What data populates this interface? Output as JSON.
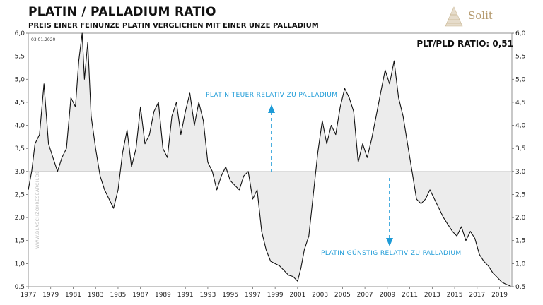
{
  "header": {
    "title": "PLATIN / PALLADIUM RATIO",
    "subtitle": "PREIS EINER FEINUNZE PLATIN VERGLICHEN MIT EINER UNZE PALLADIUM"
  },
  "brand": {
    "name": "Solit",
    "color": "#b59a6e"
  },
  "date_label": "03.01.2020",
  "ratio_label": "PLT/PLD RATIO: 0,51",
  "watermark": "WWW.BLASCHZOKRESEARCH.DE",
  "annotations": {
    "upper": "PLATIN TEUER RELATIV ZU PALLADIUM",
    "lower": "PLATIN GÜNSTIG RELATIV ZU PALLADIUM"
  },
  "colors": {
    "line": "#111111",
    "fill": "#ececec",
    "annotation": "#1e9bd7"
  },
  "chart_data": {
    "type": "line",
    "title": "PLATIN / PALLADIUM RATIO",
    "subtitle": "PREIS EINER FEINUNZE PLATIN VERGLICHEN MIT EINER UNZE PALLADIUM",
    "baseline": 3.0,
    "xlim": [
      1977,
      2020.1
    ],
    "ylim": [
      0.5,
      6.0
    ],
    "x_ticks": [
      1977,
      1979,
      1981,
      1983,
      1985,
      1987,
      1989,
      1991,
      1993,
      1995,
      1997,
      1999,
      2001,
      2003,
      2005,
      2007,
      2009,
      2011,
      2013,
      2015,
      2017,
      2019
    ],
    "y_ticks": [
      "0,5",
      "1,0",
      "1,5",
      "2,0",
      "2,5",
      "3,0",
      "3,5",
      "4,0",
      "4,5",
      "5,0",
      "5,5",
      "6,0"
    ],
    "grid": false,
    "series": [
      {
        "x": [
          1977.0,
          1977.3,
          1977.6,
          1978.0,
          1978.4,
          1978.8,
          1979.2,
          1979.6,
          1980.0,
          1980.4,
          1980.8,
          1981.2,
          1981.5,
          1981.8,
          1982.0,
          1982.3,
          1982.6,
          1983.0,
          1983.4,
          1983.8,
          1984.2,
          1984.6,
          1985.0,
          1985.4,
          1985.8,
          1986.2,
          1986.6,
          1987.0,
          1987.4,
          1987.8,
          1988.2,
          1988.6,
          1989.0,
          1989.4,
          1989.8,
          1990.2,
          1990.6,
          1991.0,
          1991.4,
          1991.8,
          1992.2,
          1992.6,
          1993.0,
          1993.4,
          1993.8,
          1994.2,
          1994.6,
          1995.0,
          1995.4,
          1995.8,
          1996.2,
          1996.6,
          1997.0,
          1997.4,
          1997.8,
          1998.2,
          1998.6,
          1999.0,
          1999.4,
          1999.8,
          2000.2,
          2000.6,
          2001.0,
          2001.3,
          2001.6,
          2002.0,
          2002.4,
          2002.8,
          2003.2,
          2003.6,
          2004.0,
          2004.4,
          2004.8,
          2005.2,
          2005.6,
          2006.0,
          2006.4,
          2006.8,
          2007.2,
          2007.6,
          2008.0,
          2008.4,
          2008.8,
          2009.2,
          2009.6,
          2010.0,
          2010.4,
          2010.8,
          2011.2,
          2011.6,
          2012.0,
          2012.4,
          2012.8,
          2013.2,
          2013.6,
          2014.0,
          2014.4,
          2014.8,
          2015.2,
          2015.6,
          2016.0,
          2016.4,
          2016.8,
          2017.2,
          2017.6,
          2018.0,
          2018.4,
          2018.8,
          2019.2,
          2019.6,
          2020.0
        ],
        "values": [
          2.6,
          3.0,
          3.6,
          3.8,
          4.9,
          3.6,
          3.3,
          3.0,
          3.3,
          3.5,
          4.6,
          4.4,
          5.4,
          6.0,
          5.0,
          5.8,
          4.2,
          3.5,
          2.9,
          2.6,
          2.4,
          2.2,
          2.6,
          3.4,
          3.9,
          3.1,
          3.5,
          4.4,
          3.6,
          3.8,
          4.3,
          4.5,
          3.5,
          3.3,
          4.2,
          4.5,
          3.8,
          4.3,
          4.7,
          4.0,
          4.5,
          4.1,
          3.2,
          3.0,
          2.6,
          2.9,
          3.1,
          2.8,
          2.7,
          2.6,
          2.9,
          3.0,
          2.4,
          2.6,
          1.7,
          1.3,
          1.05,
          1.0,
          0.95,
          0.85,
          0.75,
          0.72,
          0.62,
          0.9,
          1.3,
          1.6,
          2.5,
          3.4,
          4.1,
          3.6,
          4.0,
          3.8,
          4.4,
          4.8,
          4.6,
          4.3,
          3.2,
          3.6,
          3.3,
          3.7,
          4.2,
          4.7,
          5.2,
          4.9,
          5.4,
          4.6,
          4.2,
          3.6,
          3.0,
          2.4,
          2.3,
          2.4,
          2.6,
          2.4,
          2.2,
          2.0,
          1.85,
          1.7,
          1.6,
          1.8,
          1.5,
          1.7,
          1.55,
          1.2,
          1.05,
          0.95,
          0.8,
          0.7,
          0.6,
          0.55,
          0.51
        ]
      }
    ]
  }
}
